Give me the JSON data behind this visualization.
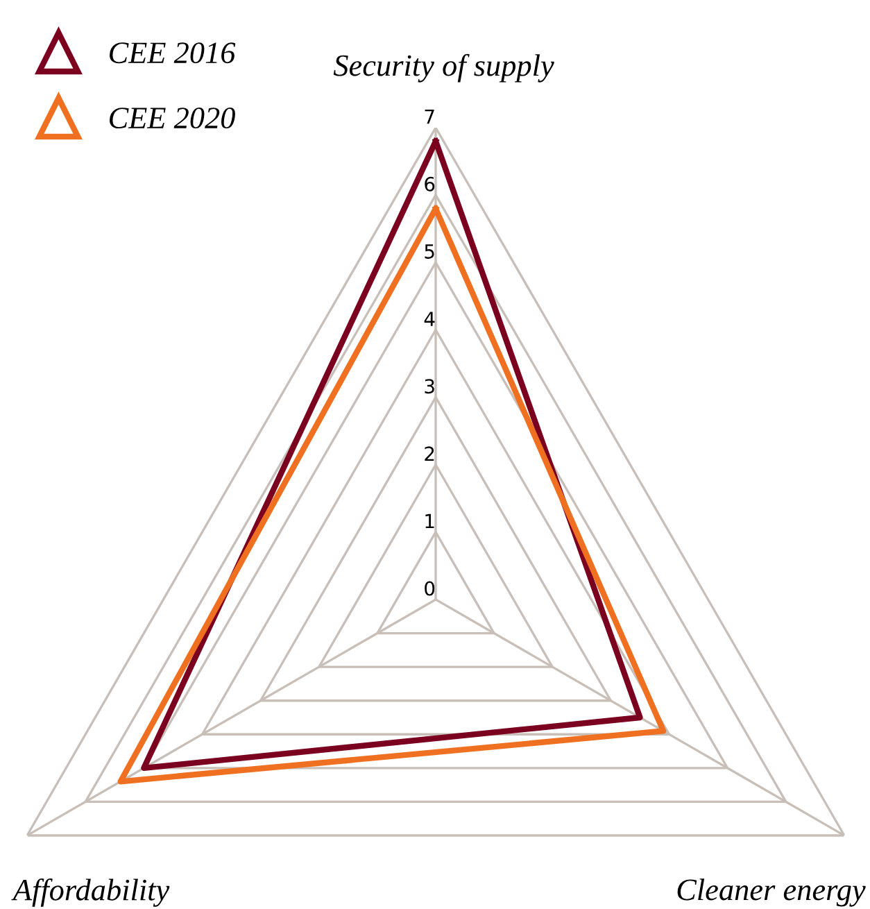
{
  "chart_data": {
    "type": "radar",
    "categories": [
      "Security of supply",
      "Cleaner energy",
      "Affordability"
    ],
    "series": [
      {
        "name": "CEE 2016",
        "color": "#7b0020",
        "values": [
          6.8,
          3.5,
          5.0
        ]
      },
      {
        "name": "CEE 2020",
        "color": "#f07022",
        "values": [
          5.8,
          3.9,
          5.4
        ]
      }
    ],
    "ylim": [
      0,
      7
    ],
    "yticks": [
      0,
      1,
      2,
      3,
      4,
      5,
      6,
      7
    ],
    "grid": true,
    "legend": "top left",
    "marker": "none",
    "line_style": "solid"
  }
}
